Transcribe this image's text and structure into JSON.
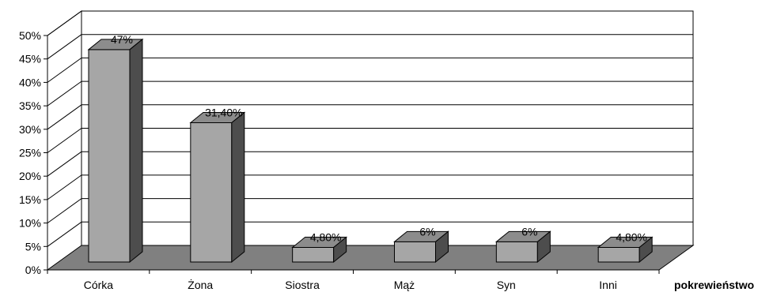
{
  "chart_data": {
    "type": "bar",
    "categories": [
      "Córka",
      "Żona",
      "Siostra",
      "Mąż",
      "Syn",
      "Inni"
    ],
    "values": [
      47,
      31.4,
      4.8,
      6,
      6,
      4.8
    ],
    "value_labels": [
      "47%",
      "31,40%",
      "4,80%",
      "6%",
      "6%",
      "4,80%"
    ],
    "xlabel": "pokrewieństwo",
    "ylabel": "",
    "ylim": [
      0,
      50
    ],
    "y_ticks": [
      "0%",
      "5%",
      "10%",
      "15%",
      "20%",
      "25%",
      "30%",
      "35%",
      "40%",
      "45%",
      "50%"
    ],
    "grid": true,
    "style": "3d-column",
    "colors": {
      "bar_front": "#a6a6a6",
      "bar_top": "#8c8c8c",
      "bar_side": "#4d4d4d",
      "floor": "#808080",
      "grid": "#000000"
    }
  }
}
